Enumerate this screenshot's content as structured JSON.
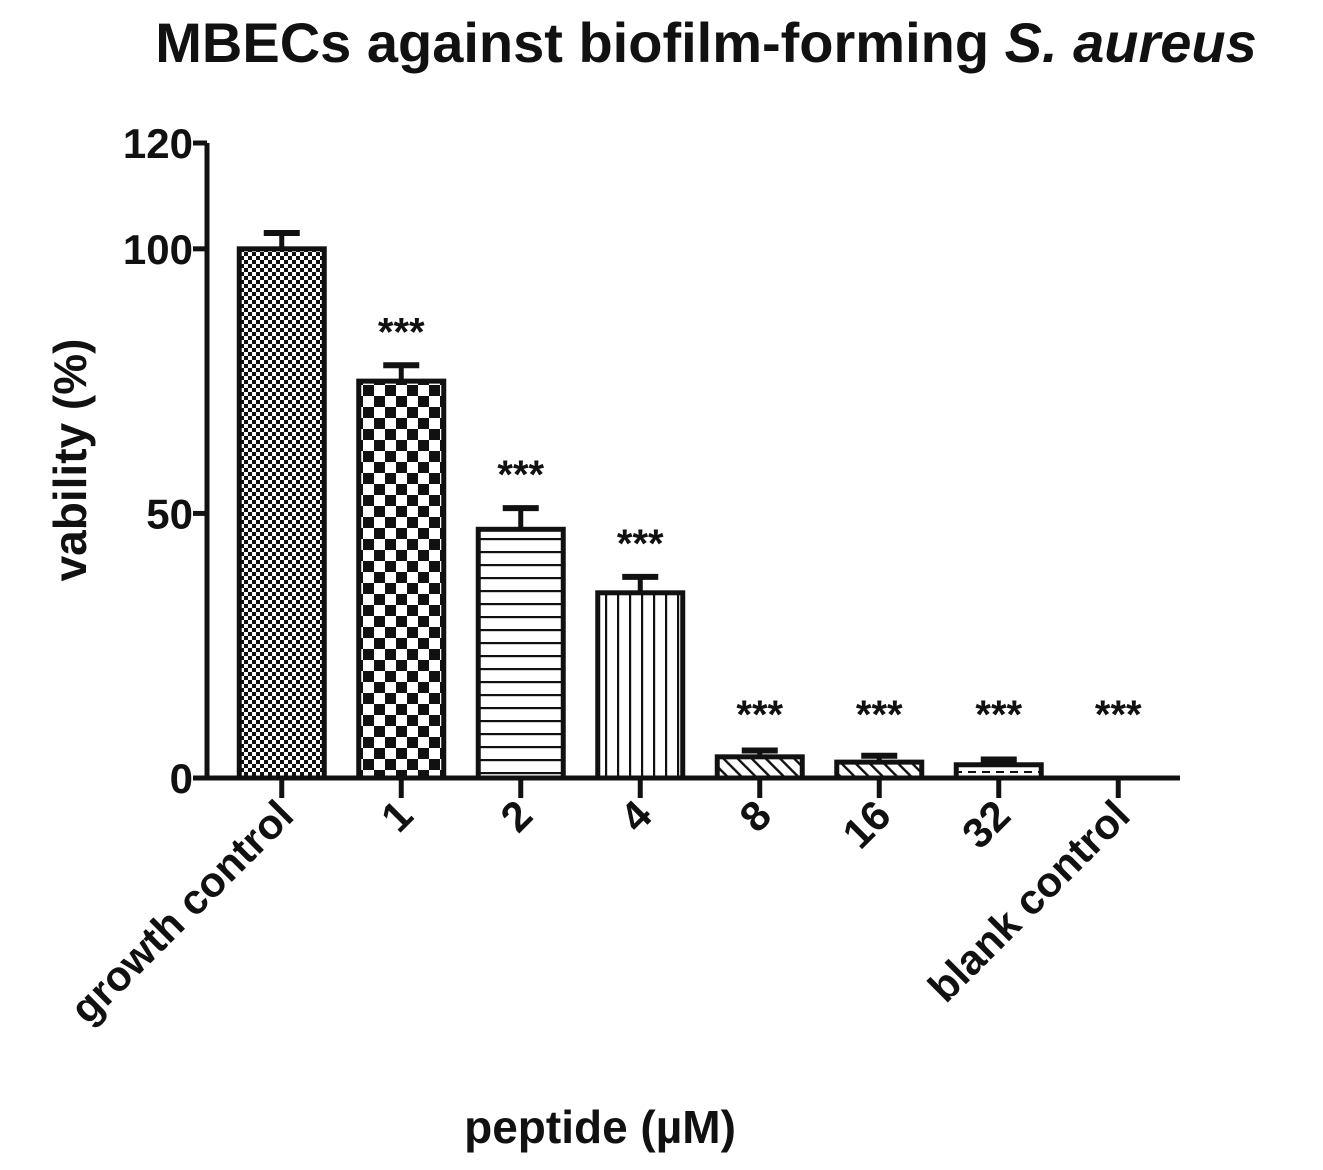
{
  "chart_data": {
    "type": "bar",
    "title": "MBECs against biofilm-forming",
    "title_italic": "S. aureus",
    "xlabel": "peptide (µM)",
    "ylabel": "vability (%)",
    "ylim": [
      0,
      120
    ],
    "yticks": [
      0,
      50,
      100,
      120
    ],
    "categories": [
      "growth control",
      "1",
      "2",
      "4",
      "8",
      "16",
      "32",
      "blank control"
    ],
    "values": [
      100,
      75,
      47,
      35,
      4,
      3,
      2.5,
      0
    ],
    "errors": [
      3,
      3,
      4,
      3,
      1.2,
      1.2,
      1,
      0
    ],
    "significance": [
      "",
      "***",
      "***",
      "***",
      "***",
      "***",
      "***",
      "***"
    ],
    "patterns": [
      "fine-checker",
      "coarse-checker",
      "horizontal-lines",
      "vertical-lines",
      "diagonal-lines",
      "diagonal-lines",
      "horizontal-dashes",
      "none"
    ],
    "colors": {
      "stroke": "#111111",
      "fill": "#ffffff"
    },
    "grid": false,
    "legend": "none"
  }
}
